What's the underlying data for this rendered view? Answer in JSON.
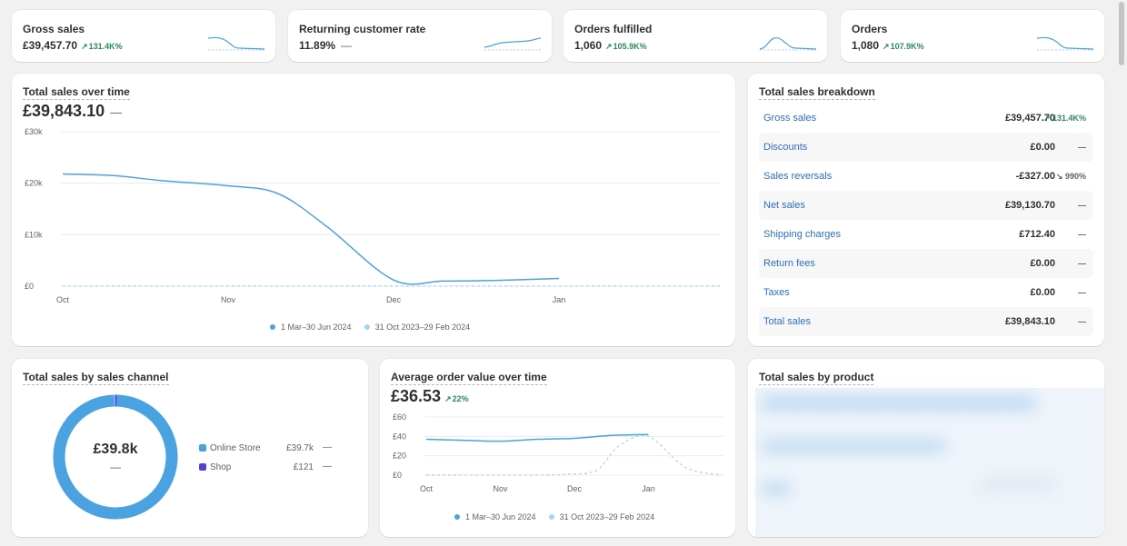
{
  "kpis": [
    {
      "title": "Gross sales",
      "value": "£39,457.70",
      "change": "131.4K%",
      "direction": "up"
    },
    {
      "title": "Returning customer rate",
      "value": "11.89%",
      "change": "—",
      "direction": "none"
    },
    {
      "title": "Orders fulfilled",
      "value": "1,060",
      "change": "105.9K%",
      "direction": "up"
    },
    {
      "title": "Orders",
      "value": "1,080",
      "change": "107.9K%",
      "direction": "up"
    }
  ],
  "sales_over_time": {
    "title": "Total sales over time",
    "value": "£39,843.10",
    "change": "—",
    "legend": [
      "1 Mar–30 Jun 2024",
      "31 Oct 2023–29 Feb 2024"
    ]
  },
  "breakdown": {
    "title": "Total sales breakdown",
    "rows": [
      {
        "label": "Gross sales",
        "value": "£39,457.70",
        "change": "131.4K%",
        "direction": "up"
      },
      {
        "label": "Discounts",
        "value": "£0.00",
        "change": "—",
        "direction": "none"
      },
      {
        "label": "Sales reversals",
        "value": "-£327.00",
        "change": "990%",
        "direction": "down"
      },
      {
        "label": "Net sales",
        "value": "£39,130.70",
        "change": "—",
        "direction": "none"
      },
      {
        "label": "Shipping charges",
        "value": "£712.40",
        "change": "—",
        "direction": "none"
      },
      {
        "label": "Return fees",
        "value": "£0.00",
        "change": "—",
        "direction": "none"
      },
      {
        "label": "Taxes",
        "value": "£0.00",
        "change": "—",
        "direction": "none"
      },
      {
        "label": "Total sales",
        "value": "£39,843.10",
        "change": "—",
        "direction": "none"
      }
    ]
  },
  "channel": {
    "title": "Total sales by sales channel",
    "center_value": "£39.8k",
    "center_change": "—",
    "items": [
      {
        "label": "Online Store",
        "value": "£39.7k",
        "change": "—",
        "color": "#4aa3e0"
      },
      {
        "label": "Shop",
        "value": "£121",
        "change": "—",
        "color": "#5a3fd6"
      }
    ]
  },
  "aov": {
    "title": "Average order value over time",
    "value": "£36.53",
    "change": "22%",
    "legend": [
      "1 Mar–30 Jun 2024",
      "31 Oct 2023–29 Feb 2024"
    ]
  },
  "product": {
    "title": "Total sales by product"
  },
  "colors": {
    "primary": "#4aa3e0",
    "secondary": "#a9d4ef",
    "positive": "#2e8a5a",
    "link": "#2c6ecb"
  },
  "chart_data": [
    {
      "type": "line",
      "title": "Total sales over time",
      "categories": [
        "Oct",
        "Nov",
        "Dec",
        "Jan"
      ],
      "ylabels": [
        "£30k",
        "£20k",
        "£10k",
        "£0"
      ],
      "ylim": [
        0,
        30000
      ],
      "series": [
        {
          "name": "1 Mar–30 Jun 2024",
          "x": [
            0,
            0.3,
            0.6,
            1.0,
            1.3,
            1.6,
            2.0,
            2.3,
            2.6,
            3.0
          ],
          "values": [
            21800,
            21500,
            20500,
            19500,
            18000,
            11500,
            1200,
            1000,
            1100,
            1500
          ]
        },
        {
          "name": "31 Oct 2023–29 Feb 2024",
          "x": [
            0,
            4
          ],
          "values": [
            0,
            0
          ]
        }
      ]
    },
    {
      "type": "line",
      "title": "Average order value over time",
      "categories": [
        "Oct",
        "Nov",
        "Dec",
        "Jan"
      ],
      "ylabels": [
        "£60",
        "£40",
        "£20",
        "£0"
      ],
      "ylim": [
        0,
        60
      ],
      "series": [
        {
          "name": "1 Mar–30 Jun 2024",
          "x": [
            0,
            0.5,
            1.0,
            1.5,
            2.0,
            2.5,
            3.0
          ],
          "values": [
            37,
            36,
            35,
            37,
            38,
            41,
            42
          ]
        },
        {
          "name": "31 Oct 2023–29 Feb 2024",
          "x": [
            0,
            1.5,
            1.9,
            2.3,
            2.6,
            3.0,
            3.5,
            4.0
          ],
          "values": [
            0,
            0,
            1,
            5,
            30,
            40,
            8,
            0
          ]
        }
      ]
    },
    {
      "type": "pie",
      "title": "Total sales by sales channel",
      "categories": [
        "Online Store",
        "Shop"
      ],
      "values": [
        39700,
        121
      ]
    }
  ]
}
